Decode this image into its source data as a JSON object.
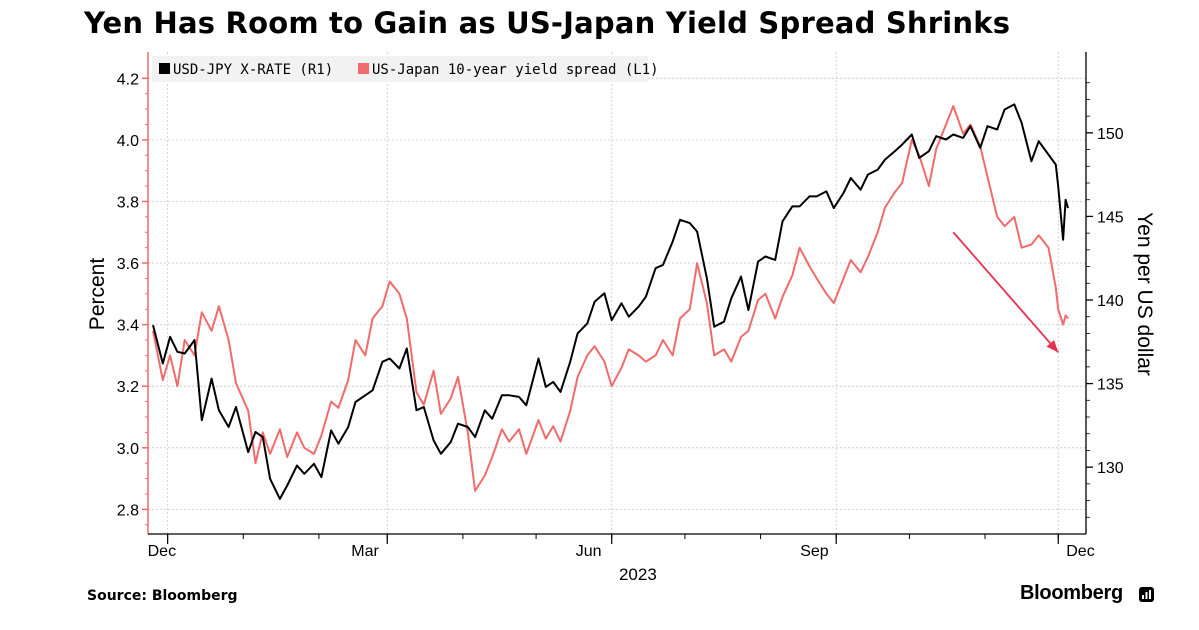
{
  "title": "Yen Has Room to Gain as US-Japan Yield Spread Shrinks",
  "source": "Source: Bloomberg",
  "brand": "Bloomberg",
  "brand_icon": "bloomberg-terminal-icon",
  "colors": {
    "usdjpy": "#000000",
    "spread": "#f06b6b",
    "arrow": "#e8304f",
    "grid": "#c8c8c8",
    "legend_bg": "#f2f2f2",
    "axis": "#000000"
  },
  "chart_data": {
    "type": "line",
    "title": "Yen Has Room to Gain as US-Japan Yield Spread Shrinks",
    "xlabel": "2023",
    "ylabel_left": "Percent",
    "ylabel_right": "Yen per US dollar",
    "x_ticks": [
      "Dec",
      "Mar",
      "Jun",
      "Sep",
      "Dec"
    ],
    "x_year_label": "2023",
    "ylim_left": [
      2.72,
      4.24
    ],
    "ylim_right": [
      126,
      154
    ],
    "yticks_left": [
      "2.8",
      "3.0",
      "3.2",
      "3.4",
      "3.6",
      "3.8",
      "4.0",
      "4.2"
    ],
    "yticks_right": [
      "130",
      "135",
      "140",
      "145",
      "150"
    ],
    "grid": true,
    "legend_position": "top-left",
    "x_range": [
      "2022-11-25",
      "2023-12-05"
    ],
    "series": [
      {
        "name": "USD-JPY X-RATE (R1)",
        "axis": "right",
        "points": [
          [
            "2022-11-25",
            138.5
          ],
          [
            "2022-11-29",
            136.2
          ],
          [
            "2022-12-02",
            137.8
          ],
          [
            "2022-12-05",
            136.9
          ],
          [
            "2022-12-08",
            136.8
          ],
          [
            "2022-12-12",
            137.6
          ],
          [
            "2022-12-15",
            132.8
          ],
          [
            "2022-12-19",
            135.3
          ],
          [
            "2022-12-22",
            133.4
          ],
          [
            "2022-12-26",
            132.4
          ],
          [
            "2022-12-29",
            133.6
          ],
          [
            "2023-01-03",
            130.9
          ],
          [
            "2023-01-06",
            132.1
          ],
          [
            "2023-01-09",
            131.8
          ],
          [
            "2023-01-12",
            129.3
          ],
          [
            "2023-01-16",
            128.1
          ],
          [
            "2023-01-19",
            128.9
          ],
          [
            "2023-01-23",
            130.1
          ],
          [
            "2023-01-26",
            129.6
          ],
          [
            "2023-01-30",
            130.2
          ],
          [
            "2023-02-02",
            129.4
          ],
          [
            "2023-02-06",
            132.2
          ],
          [
            "2023-02-09",
            131.4
          ],
          [
            "2023-02-13",
            132.4
          ],
          [
            "2023-02-16",
            133.9
          ],
          [
            "2023-02-20",
            134.3
          ],
          [
            "2023-02-23",
            134.6
          ],
          [
            "2023-02-27",
            136.3
          ],
          [
            "2023-03-02",
            136.5
          ],
          [
            "2023-03-06",
            135.9
          ],
          [
            "2023-03-09",
            137.1
          ],
          [
            "2023-03-13",
            133.4
          ],
          [
            "2023-03-16",
            133.6
          ],
          [
            "2023-03-20",
            131.6
          ],
          [
            "2023-03-23",
            130.8
          ],
          [
            "2023-03-27",
            131.5
          ],
          [
            "2023-03-30",
            132.6
          ],
          [
            "2023-04-03",
            132.4
          ],
          [
            "2023-04-06",
            131.8
          ],
          [
            "2023-04-10",
            133.4
          ],
          [
            "2023-04-13",
            132.9
          ],
          [
            "2023-04-17",
            134.3
          ],
          [
            "2023-04-20",
            134.3
          ],
          [
            "2023-04-24",
            134.2
          ],
          [
            "2023-04-27",
            133.7
          ],
          [
            "2023-05-02",
            136.5
          ],
          [
            "2023-05-05",
            134.8
          ],
          [
            "2023-05-08",
            135.1
          ],
          [
            "2023-05-11",
            134.5
          ],
          [
            "2023-05-15",
            136.3
          ],
          [
            "2023-05-18",
            138.0
          ],
          [
            "2023-05-22",
            138.6
          ],
          [
            "2023-05-25",
            139.9
          ],
          [
            "2023-05-29",
            140.4
          ],
          [
            "2023-06-01",
            138.8
          ],
          [
            "2023-06-05",
            139.8
          ],
          [
            "2023-06-08",
            139.0
          ],
          [
            "2023-06-12",
            139.6
          ],
          [
            "2023-06-15",
            140.2
          ],
          [
            "2023-06-19",
            141.9
          ],
          [
            "2023-06-22",
            142.1
          ],
          [
            "2023-06-26",
            143.5
          ],
          [
            "2023-06-29",
            144.8
          ],
          [
            "2023-07-03",
            144.6
          ],
          [
            "2023-07-06",
            144.1
          ],
          [
            "2023-07-10",
            141.3
          ],
          [
            "2023-07-13",
            138.4
          ],
          [
            "2023-07-17",
            138.7
          ],
          [
            "2023-07-20",
            140.1
          ],
          [
            "2023-07-24",
            141.4
          ],
          [
            "2023-07-27",
            139.4
          ],
          [
            "2023-07-31",
            142.3
          ],
          [
            "2023-08-03",
            142.6
          ],
          [
            "2023-08-07",
            142.4
          ],
          [
            "2023-08-10",
            144.7
          ],
          [
            "2023-08-14",
            145.6
          ],
          [
            "2023-08-17",
            145.6
          ],
          [
            "2023-08-21",
            146.2
          ],
          [
            "2023-08-24",
            146.2
          ],
          [
            "2023-08-28",
            146.5
          ],
          [
            "2023-08-31",
            145.5
          ],
          [
            "2023-09-04",
            146.4
          ],
          [
            "2023-09-07",
            147.3
          ],
          [
            "2023-09-11",
            146.6
          ],
          [
            "2023-09-14",
            147.5
          ],
          [
            "2023-09-18",
            147.8
          ],
          [
            "2023-09-21",
            148.4
          ],
          [
            "2023-09-25",
            148.9
          ],
          [
            "2023-09-28",
            149.3
          ],
          [
            "2023-10-02",
            149.9
          ],
          [
            "2023-10-05",
            148.5
          ],
          [
            "2023-10-09",
            148.9
          ],
          [
            "2023-10-12",
            149.8
          ],
          [
            "2023-10-16",
            149.6
          ],
          [
            "2023-10-19",
            149.9
          ],
          [
            "2023-10-23",
            149.7
          ],
          [
            "2023-10-26",
            150.4
          ],
          [
            "2023-10-30",
            149.1
          ],
          [
            "2023-11-02",
            150.4
          ],
          [
            "2023-11-06",
            150.2
          ],
          [
            "2023-11-09",
            151.4
          ],
          [
            "2023-11-13",
            151.7
          ],
          [
            "2023-11-16",
            150.6
          ],
          [
            "2023-11-20",
            148.3
          ],
          [
            "2023-11-23",
            149.5
          ],
          [
            "2023-11-27",
            148.7
          ],
          [
            "2023-11-30",
            148.1
          ],
          [
            "2023-12-01",
            146.8
          ],
          [
            "2023-12-03",
            143.6
          ],
          [
            "2023-12-04",
            146.0
          ],
          [
            "2023-12-05",
            145.5
          ]
        ]
      },
      {
        "name": "US-Japan 10-year yield spread (L1)",
        "axis": "left",
        "points": [
          [
            "2022-11-25",
            3.38
          ],
          [
            "2022-11-29",
            3.22
          ],
          [
            "2022-12-02",
            3.3
          ],
          [
            "2022-12-05",
            3.2
          ],
          [
            "2022-12-08",
            3.35
          ],
          [
            "2022-12-12",
            3.3
          ],
          [
            "2022-12-15",
            3.44
          ],
          [
            "2022-12-19",
            3.38
          ],
          [
            "2022-12-22",
            3.46
          ],
          [
            "2022-12-26",
            3.35
          ],
          [
            "2022-12-29",
            3.21
          ],
          [
            "2023-01-03",
            3.12
          ],
          [
            "2023-01-06",
            2.95
          ],
          [
            "2023-01-09",
            3.05
          ],
          [
            "2023-01-12",
            2.98
          ],
          [
            "2023-01-16",
            3.06
          ],
          [
            "2023-01-19",
            2.97
          ],
          [
            "2023-01-23",
            3.05
          ],
          [
            "2023-01-26",
            3.0
          ],
          [
            "2023-01-30",
            2.98
          ],
          [
            "2023-02-02",
            3.04
          ],
          [
            "2023-02-06",
            3.15
          ],
          [
            "2023-02-09",
            3.13
          ],
          [
            "2023-02-13",
            3.22
          ],
          [
            "2023-02-16",
            3.35
          ],
          [
            "2023-02-20",
            3.3
          ],
          [
            "2023-02-23",
            3.42
          ],
          [
            "2023-02-27",
            3.46
          ],
          [
            "2023-03-02",
            3.54
          ],
          [
            "2023-03-06",
            3.5
          ],
          [
            "2023-03-09",
            3.42
          ],
          [
            "2023-03-13",
            3.18
          ],
          [
            "2023-03-16",
            3.14
          ],
          [
            "2023-03-20",
            3.25
          ],
          [
            "2023-03-23",
            3.11
          ],
          [
            "2023-03-27",
            3.16
          ],
          [
            "2023-03-30",
            3.23
          ],
          [
            "2023-04-03",
            3.05
          ],
          [
            "2023-04-06",
            2.86
          ],
          [
            "2023-04-10",
            2.91
          ],
          [
            "2023-04-13",
            2.97
          ],
          [
            "2023-04-17",
            3.06
          ],
          [
            "2023-04-20",
            3.02
          ],
          [
            "2023-04-24",
            3.06
          ],
          [
            "2023-04-27",
            2.98
          ],
          [
            "2023-05-02",
            3.09
          ],
          [
            "2023-05-05",
            3.03
          ],
          [
            "2023-05-08",
            3.07
          ],
          [
            "2023-05-11",
            3.02
          ],
          [
            "2023-05-15",
            3.12
          ],
          [
            "2023-05-18",
            3.23
          ],
          [
            "2023-05-22",
            3.3
          ],
          [
            "2023-05-25",
            3.33
          ],
          [
            "2023-05-29",
            3.28
          ],
          [
            "2023-06-01",
            3.2
          ],
          [
            "2023-06-05",
            3.26
          ],
          [
            "2023-06-08",
            3.32
          ],
          [
            "2023-06-12",
            3.3
          ],
          [
            "2023-06-15",
            3.28
          ],
          [
            "2023-06-19",
            3.3
          ],
          [
            "2023-06-22",
            3.35
          ],
          [
            "2023-06-26",
            3.3
          ],
          [
            "2023-06-29",
            3.42
          ],
          [
            "2023-07-03",
            3.45
          ],
          [
            "2023-07-06",
            3.6
          ],
          [
            "2023-07-10",
            3.47
          ],
          [
            "2023-07-13",
            3.3
          ],
          [
            "2023-07-17",
            3.32
          ],
          [
            "2023-07-20",
            3.28
          ],
          [
            "2023-07-24",
            3.36
          ],
          [
            "2023-07-27",
            3.38
          ],
          [
            "2023-07-31",
            3.48
          ],
          [
            "2023-08-03",
            3.5
          ],
          [
            "2023-08-07",
            3.42
          ],
          [
            "2023-08-10",
            3.49
          ],
          [
            "2023-08-14",
            3.56
          ],
          [
            "2023-08-17",
            3.65
          ],
          [
            "2023-08-21",
            3.59
          ],
          [
            "2023-08-24",
            3.55
          ],
          [
            "2023-08-28",
            3.5
          ],
          [
            "2023-08-31",
            3.47
          ],
          [
            "2023-09-04",
            3.55
          ],
          [
            "2023-09-07",
            3.61
          ],
          [
            "2023-09-11",
            3.57
          ],
          [
            "2023-09-14",
            3.62
          ],
          [
            "2023-09-18",
            3.7
          ],
          [
            "2023-09-21",
            3.78
          ],
          [
            "2023-09-25",
            3.83
          ],
          [
            "2023-09-28",
            3.86
          ],
          [
            "2023-10-02",
            4.0
          ],
          [
            "2023-10-05",
            3.95
          ],
          [
            "2023-10-09",
            3.85
          ],
          [
            "2023-10-12",
            3.97
          ],
          [
            "2023-10-16",
            4.05
          ],
          [
            "2023-10-19",
            4.11
          ],
          [
            "2023-10-23",
            4.02
          ],
          [
            "2023-10-26",
            4.05
          ],
          [
            "2023-10-30",
            3.98
          ],
          [
            "2023-11-02",
            3.88
          ],
          [
            "2023-11-06",
            3.75
          ],
          [
            "2023-11-09",
            3.72
          ],
          [
            "2023-11-13",
            3.75
          ],
          [
            "2023-11-16",
            3.65
          ],
          [
            "2023-11-20",
            3.66
          ],
          [
            "2023-11-23",
            3.69
          ],
          [
            "2023-11-27",
            3.65
          ],
          [
            "2023-11-30",
            3.52
          ],
          [
            "2023-12-01",
            3.45
          ],
          [
            "2023-12-03",
            3.4
          ],
          [
            "2023-12-04",
            3.43
          ],
          [
            "2023-12-05",
            3.42
          ]
        ]
      }
    ],
    "annotations": [
      {
        "type": "arrow",
        "from": [
          "2023-10-19",
          3.7
        ],
        "to": [
          "2023-12-01",
          3.31
        ]
      }
    ]
  }
}
